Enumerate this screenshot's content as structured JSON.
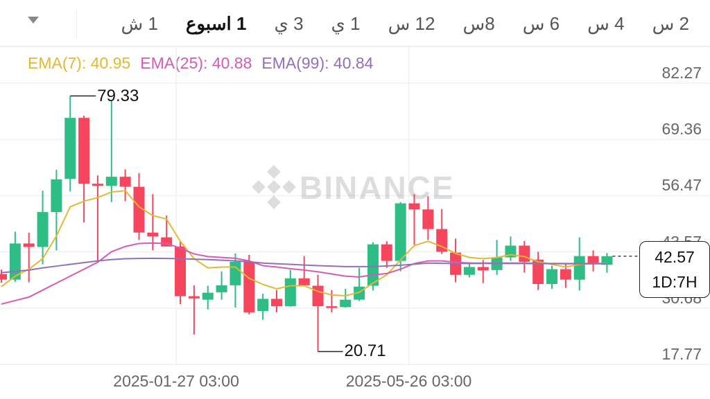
{
  "timeframes": {
    "tabs": [
      "2 س",
      "4 س",
      "6 س",
      "8س",
      "12 س",
      "1 ي",
      "3 ي",
      "1 اسبوع",
      "1 ش"
    ],
    "active": "1 اسبوع",
    "more_icon": "triangle-down"
  },
  "indicators": {
    "ema7": {
      "label": "EMA(7): 40.95",
      "color": "#E5B732"
    },
    "ema25": {
      "label": "EMA(25): 40.88",
      "color": "#D65AB4"
    },
    "ema99": {
      "label": "EMA(99): 40.84",
      "color": "#9270B8"
    }
  },
  "watermark": "BINANCE",
  "current_price": {
    "value": "42.57",
    "countdown": "1D:7H"
  },
  "chart_data": {
    "type": "candlestick",
    "y_ticks": [
      "82.27",
      "69.36",
      "56.47",
      "43.57",
      "30.68",
      "17.77"
    ],
    "ylim": [
      17.77,
      82.27
    ],
    "x_tick_labels": [
      {
        "label": "2025-01-27 03:00",
        "index": 12.7
      },
      {
        "label": "2025-05-26 03:00",
        "index": 29.6
      }
    ],
    "grid": true,
    "high_marker": {
      "label": "79.33",
      "index": 5
    },
    "low_marker": {
      "label": "20.71",
      "index": 23
    },
    "colors": {
      "up": "#2EBD85",
      "down": "#F6465D"
    },
    "candles": [
      [
        38.5,
        39.5,
        36.5,
        37.2
      ],
      [
        37.2,
        48.2,
        36.7,
        45.5
      ],
      [
        45.5,
        48.0,
        36.6,
        44.7
      ],
      [
        44.7,
        57.6,
        40.7,
        52.7
      ],
      [
        52.7,
        62.4,
        43.9,
        60.2
      ],
      [
        60.3,
        79.33,
        57.4,
        74.3
      ],
      [
        74.3,
        74.8,
        50.3,
        59.2
      ],
      [
        59.2,
        61.1,
        41.3,
        58.7
      ],
      [
        58.7,
        78.3,
        55.0,
        60.8
      ],
      [
        60.8,
        62.5,
        55.2,
        58.5
      ],
      [
        58.5,
        61.6,
        46.3,
        48.0
      ],
      [
        48.0,
        56.8,
        43.9,
        47.1
      ],
      [
        46.9,
        51.9,
        44.8,
        44.8
      ],
      [
        44.8,
        45.9,
        31.6,
        33.4
      ],
      [
        33.4,
        35.9,
        24.6,
        32.9
      ],
      [
        32.6,
        35.8,
        30.4,
        34.2
      ],
      [
        34.3,
        39.1,
        32.6,
        35.9
      ],
      [
        35.9,
        43.2,
        30.8,
        41.3
      ],
      [
        41.2,
        42.9,
        29.2,
        29.7
      ],
      [
        30.0,
        34.0,
        28.0,
        32.8
      ],
      [
        32.8,
        34.8,
        29.7,
        31.1
      ],
      [
        31.1,
        39.4,
        31.0,
        37.5
      ],
      [
        37.5,
        42.6,
        35.9,
        35.9
      ],
      [
        35.8,
        38.3,
        20.71,
        31.1
      ],
      [
        31.1,
        34.8,
        29.7,
        30.8
      ],
      [
        30.9,
        35.1,
        30.8,
        32.6
      ],
      [
        32.6,
        39.9,
        32.3,
        35.6
      ],
      [
        35.8,
        45.8,
        34.7,
        45.3
      ],
      [
        45.3,
        46.0,
        39.9,
        41.5
      ],
      [
        41.5,
        55.0,
        39.1,
        54.7
      ],
      [
        54.7,
        56.8,
        45.2,
        53.3
      ],
      [
        53.3,
        56.3,
        46.3,
        48.8
      ],
      [
        48.8,
        53.4,
        43.1,
        43.6
      ],
      [
        43.4,
        46.6,
        36.6,
        38.3
      ],
      [
        38.3,
        41.2,
        37.7,
        40.1
      ],
      [
        40.1,
        41.7,
        36.4,
        39.3
      ],
      [
        39.4,
        46.3,
        38.3,
        42.3
      ],
      [
        42.3,
        47.1,
        41.5,
        45.0
      ],
      [
        45.0,
        46.1,
        38.8,
        41.3
      ],
      [
        41.8,
        43.6,
        34.8,
        36.2
      ],
      [
        36.2,
        40.4,
        35.1,
        39.6
      ],
      [
        39.6,
        40.9,
        35.3,
        37.2
      ],
      [
        37.2,
        46.9,
        34.7,
        42.6
      ],
      [
        42.6,
        43.9,
        39.1,
        40.7
      ],
      [
        40.6,
        43.3,
        38.8,
        42.57
      ]
    ],
    "candle_format": [
      "open",
      "high",
      "low",
      "close"
    ],
    "series": [
      {
        "name": "EMA(7)",
        "color": "#E5B732",
        "values": [
          35.6,
          38,
          39.6,
          42,
          47.2,
          53.9,
          55.2,
          56,
          57.3,
          57.6,
          53.9,
          51.9,
          51.1,
          46,
          42,
          39.9,
          40.1,
          40.1,
          37.5,
          36.1,
          35.1,
          35.8,
          35.8,
          34.5,
          33.7,
          33.5,
          34.3,
          36.4,
          38.3,
          41.7,
          45,
          46,
          44.8,
          43.2,
          42.3,
          42,
          42.3,
          42.9,
          42.5,
          41.3,
          40.7,
          40.1,
          40.7,
          40.9,
          40.95
        ]
      },
      {
        "name": "EMA(25)",
        "color": "#D65AB4",
        "values": [
          31.6,
          32.4,
          33.2,
          34.8,
          36.4,
          38,
          39.6,
          41.2,
          43.6,
          44.8,
          45.5,
          45.6,
          45.5,
          44.4,
          43.1,
          42.5,
          42.3,
          42.1,
          41.5,
          40.4,
          40.1,
          39.7,
          39.4,
          39,
          38.5,
          38,
          37.8,
          38.3,
          38.6,
          39.6,
          40.9,
          41.5,
          41.5,
          41.2,
          41,
          41,
          41,
          41,
          41,
          40.95,
          40.9,
          40.9,
          40.9,
          40.9,
          40.88
        ]
      },
      {
        "name": "EMA(99)",
        "color": "#9270B8",
        "values": [
          38.8,
          39.1,
          39.4,
          39.9,
          40.3,
          40.7,
          41.1,
          41.5,
          41.8,
          42,
          42.05,
          42.1,
          42.05,
          42,
          41.9,
          41.8,
          41.65,
          41.5,
          41.3,
          41,
          40.85,
          40.7,
          40.55,
          40.4,
          40.3,
          40.2,
          40.2,
          40.2,
          40.35,
          40.5,
          40.75,
          41,
          40.95,
          40.9,
          40.9,
          40.9,
          40.9,
          40.9,
          40.9,
          40.88,
          40.86,
          40.85,
          40.85,
          40.84,
          40.84
        ]
      }
    ]
  }
}
